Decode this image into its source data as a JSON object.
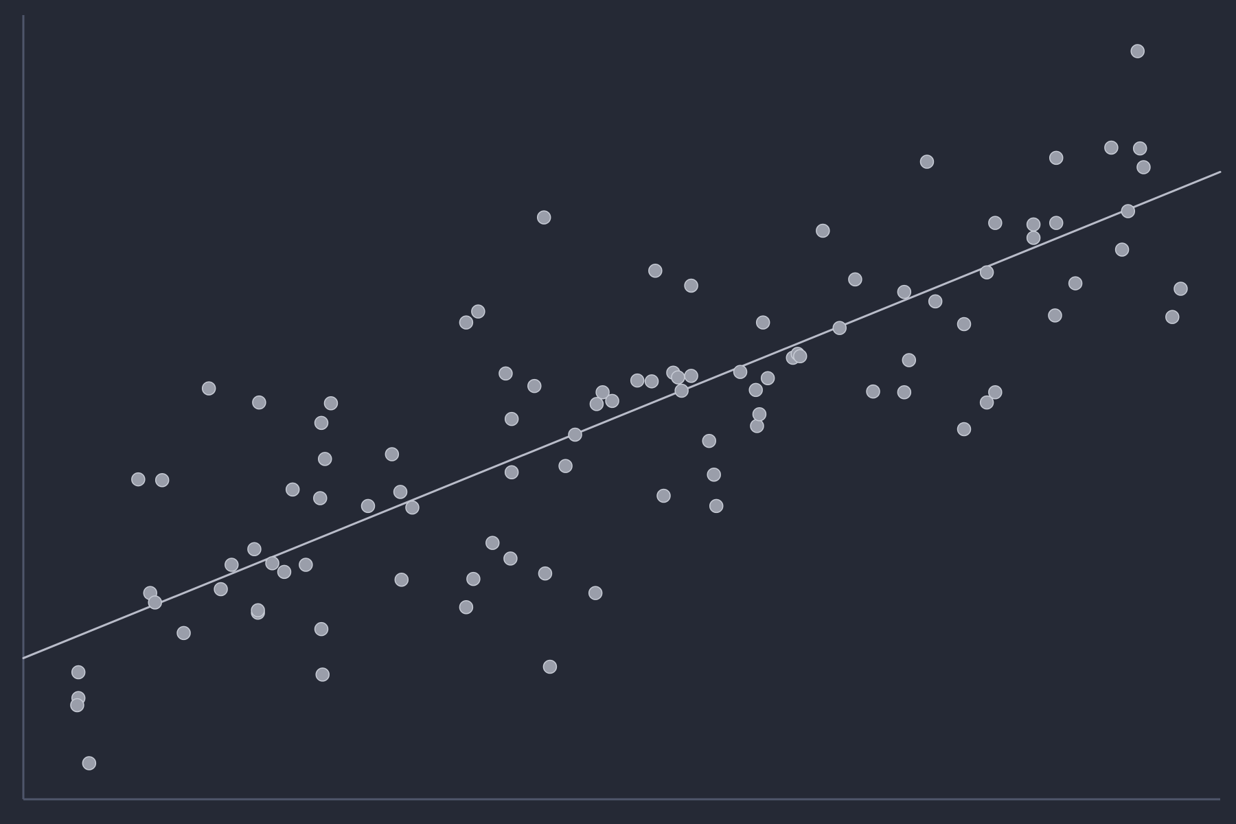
{
  "title": "",
  "colors": {
    "background": "#252935",
    "axis": "#4f566b",
    "point_fill": "#9a9eaa",
    "point_stroke": "#c8ccd6",
    "trend_line": "#b9bcc9"
  },
  "chart_data": {
    "type": "scatter",
    "title": "",
    "xlabel": "",
    "ylabel": "",
    "xlim": [
      0,
      100
    ],
    "ylim": [
      0,
      100
    ],
    "grid": false,
    "show_tick_labels": false,
    "legend": "none",
    "series": [
      {
        "marker": "circle",
        "points": [
          [
            4.6,
            16.2
          ],
          [
            4.6,
            12.9
          ],
          [
            4.5,
            12.0
          ],
          [
            5.5,
            4.6
          ],
          [
            9.6,
            40.8
          ],
          [
            11.6,
            40.7
          ],
          [
            10.6,
            26.3
          ],
          [
            11.0,
            25.1
          ],
          [
            15.5,
            52.4
          ],
          [
            13.4,
            21.2
          ],
          [
            16.5,
            26.8
          ],
          [
            17.4,
            29.9
          ],
          [
            19.3,
            31.9
          ],
          [
            19.7,
            50.6
          ],
          [
            19.6,
            23.8
          ],
          [
            19.6,
            24.1
          ],
          [
            20.8,
            30.1
          ],
          [
            21.8,
            29.0
          ],
          [
            22.5,
            39.5
          ],
          [
            23.6,
            29.9
          ],
          [
            24.8,
            38.4
          ],
          [
            24.9,
            48.0
          ],
          [
            25.2,
            43.4
          ],
          [
            25.7,
            50.5
          ],
          [
            24.9,
            21.7
          ],
          [
            25.0,
            15.9
          ],
          [
            28.8,
            37.4
          ],
          [
            30.8,
            44.0
          ],
          [
            31.5,
            39.2
          ],
          [
            31.6,
            28.0
          ],
          [
            32.5,
            37.2
          ],
          [
            37.0,
            60.8
          ],
          [
            38.0,
            62.2
          ],
          [
            37.6,
            28.1
          ],
          [
            37.0,
            24.5
          ],
          [
            39.2,
            32.7
          ],
          [
            40.3,
            54.3
          ],
          [
            40.8,
            48.5
          ],
          [
            40.8,
            41.7
          ],
          [
            40.7,
            30.7
          ],
          [
            42.7,
            52.7
          ],
          [
            43.5,
            74.2
          ],
          [
            43.6,
            28.8
          ],
          [
            44.0,
            16.9
          ],
          [
            45.3,
            42.5
          ],
          [
            46.1,
            46.5
          ],
          [
            47.8,
            26.3
          ],
          [
            47.9,
            50.4
          ],
          [
            48.4,
            51.9
          ],
          [
            49.2,
            50.8
          ],
          [
            51.3,
            53.4
          ],
          [
            52.5,
            53.3
          ],
          [
            52.8,
            67.4
          ],
          [
            53.5,
            38.7
          ],
          [
            54.3,
            54.4
          ],
          [
            54.7,
            53.8
          ],
          [
            55.0,
            52.1
          ],
          [
            55.8,
            65.5
          ],
          [
            55.8,
            54.0
          ],
          [
            57.3,
            45.7
          ],
          [
            57.7,
            41.4
          ],
          [
            57.9,
            37.4
          ],
          [
            59.9,
            54.5
          ],
          [
            61.3,
            47.6
          ],
          [
            61.2,
            52.2
          ],
          [
            61.5,
            49.1
          ],
          [
            61.8,
            60.8
          ],
          [
            62.2,
            53.7
          ],
          [
            64.3,
            56.3
          ],
          [
            64.7,
            56.8
          ],
          [
            64.9,
            56.5
          ],
          [
            66.8,
            72.5
          ],
          [
            68.2,
            60.1
          ],
          [
            69.5,
            66.3
          ],
          [
            71.0,
            52.0
          ],
          [
            73.6,
            64.7
          ],
          [
            74.0,
            56.0
          ],
          [
            73.6,
            51.9
          ],
          [
            75.5,
            81.3
          ],
          [
            76.2,
            63.5
          ],
          [
            78.6,
            60.6
          ],
          [
            78.6,
            47.2
          ],
          [
            80.5,
            50.6
          ],
          [
            80.5,
            67.2
          ],
          [
            81.2,
            73.5
          ],
          [
            81.2,
            51.9
          ],
          [
            84.4,
            73.3
          ],
          [
            84.4,
            71.6
          ],
          [
            86.3,
            81.8
          ],
          [
            86.3,
            73.5
          ],
          [
            86.2,
            61.7
          ],
          [
            87.9,
            65.8
          ],
          [
            90.9,
            83.1
          ],
          [
            91.8,
            70.1
          ],
          [
            92.3,
            75.0
          ],
          [
            93.1,
            95.4
          ],
          [
            93.3,
            83.0
          ],
          [
            93.6,
            80.6
          ],
          [
            96.0,
            61.5
          ],
          [
            96.7,
            65.1
          ]
        ]
      }
    ],
    "trend_line": {
      "x": [
        0,
        100
      ],
      "y": [
        18.0,
        80.0
      ]
    }
  }
}
